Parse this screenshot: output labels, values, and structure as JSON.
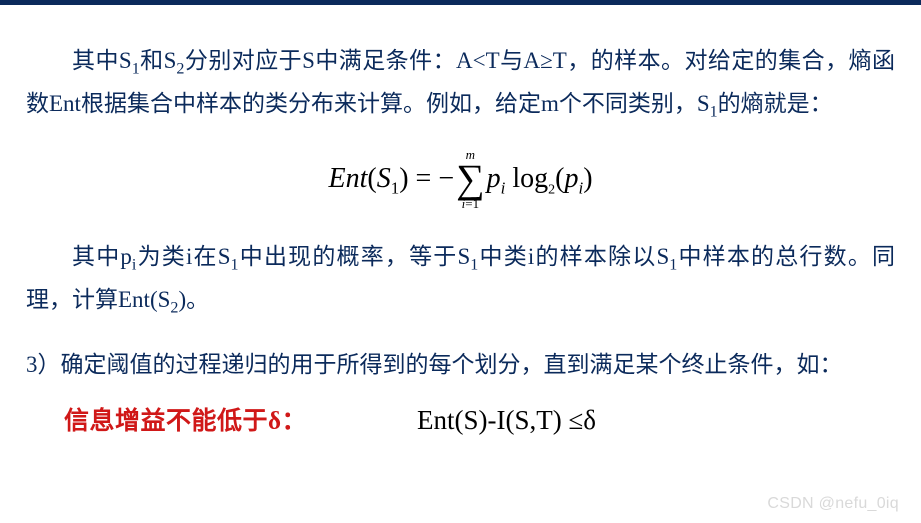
{
  "colors": {
    "rule": "#0b2a5b",
    "body_text": "#0b2a5b",
    "formula_text": "#000000",
    "emphasis_red": "#d01818",
    "watermark": "#d9d9d9",
    "background": "#ffffff"
  },
  "typography": {
    "body_font": "SimSun / Songti serif",
    "body_fontsize_pt": 17,
    "body_lineheight": 1.85,
    "emphasis_font": "SimHei / Heiti bold",
    "emphasis_fontsize_pt": 18,
    "formula_font": "Times New Roman italic",
    "formula_fontsize_pt": 21
  },
  "para1": {
    "seg1": "其中S",
    "sub1": "1",
    "seg2": "和S",
    "sub2": "2",
    "seg3": "分别对应于S中满足条件：A<T与A≥T，的样本。对给定的集合，熵函数Ent根据集合中样本的类分布来计算。例如，给定m个不同类别，S",
    "sub3": "1",
    "seg4": "的熵就是："
  },
  "formula": {
    "lhs_a": "Ent",
    "lhs_b": "(",
    "lhs_c": "S",
    "lhs_sub": "1",
    "lhs_d": ")",
    "eq": " = ",
    "neg": "−",
    "sum_upper": "m",
    "sum_lower_i": "i",
    "sum_lower_eq": "=1",
    "p": "p",
    "p_sub": "i",
    "log": " log",
    "log_base": "2",
    "open": "(",
    "p2": "p",
    "p2_sub": "i",
    "close": ")"
  },
  "para2": {
    "seg1": "其中p",
    "sub1": "i",
    "seg2": "为类i在S",
    "sub2": "1",
    "seg3": "中出现的概率，等于S",
    "sub3": "1",
    "seg4": "中类i的样本除以S",
    "sub4": "1",
    "seg5": "中样本的总行数。同理，计算Ent(S",
    "sub5": "2",
    "seg6": ")。"
  },
  "item3": {
    "num": "3）",
    "text": "确定阈值的过程递归的用于所得到的每个划分，直到满足某个终止条件，如："
  },
  "bottom": {
    "red_a": "信息增益不能低于",
    "red_delta": "δ",
    "red_colon": "：",
    "ineq": "Ent(S)-I(S,T) ≤δ"
  },
  "watermark": "CSDN @nefu_0iq"
}
